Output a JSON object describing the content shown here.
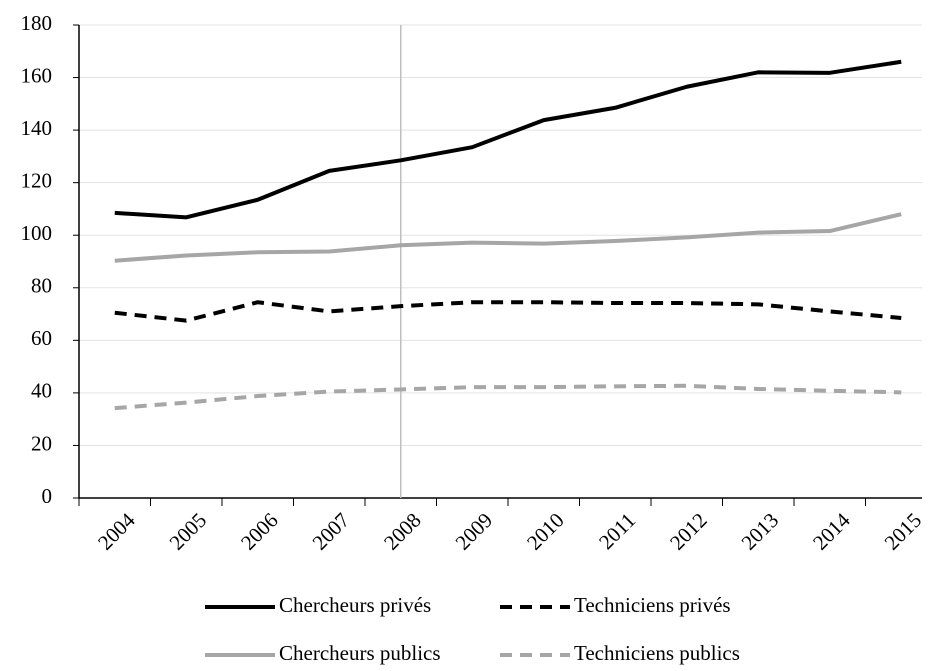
{
  "chart_data": {
    "type": "line",
    "categories": [
      "2004",
      "2005",
      "2006",
      "2007",
      "2008",
      "2009",
      "2010",
      "2011",
      "2012",
      "2013",
      "2014",
      "2015"
    ],
    "series": [
      {
        "name": "Chercheurs privés",
        "color": "#000000",
        "dash": "solid",
        "values": [
          108.5,
          106.8,
          113.5,
          124.5,
          128.5,
          133.5,
          143.8,
          148.5,
          156.5,
          162,
          161.8,
          166
        ]
      },
      {
        "name": "Techniciens privés",
        "color": "#000000",
        "dash": "dashed",
        "values": [
          70.5,
          67.5,
          74.5,
          71,
          73,
          74.5,
          74.5,
          74.2,
          74.2,
          73.7,
          71,
          68.5
        ]
      },
      {
        "name": "Chercheurs publics",
        "color": "#a6a6a6",
        "dash": "solid",
        "values": [
          90.3,
          92.3,
          93.5,
          93.8,
          96.2,
          97.2,
          96.8,
          97.8,
          99.2,
          101,
          101.6,
          108
        ]
      },
      {
        "name": "Techniciens publics",
        "color": "#a6a6a6",
        "dash": "dashed",
        "values": [
          34.2,
          36.3,
          38.8,
          40.5,
          41.3,
          42.2,
          42.2,
          42.5,
          42.7,
          41.5,
          40.8,
          40.2
        ]
      }
    ],
    "ylim": [
      0,
      180
    ],
    "yticks": [
      0,
      20,
      40,
      60,
      80,
      100,
      120,
      140,
      160,
      180
    ],
    "grid": true,
    "reference_line": {
      "category": "2008"
    },
    "legend": "bottom"
  }
}
